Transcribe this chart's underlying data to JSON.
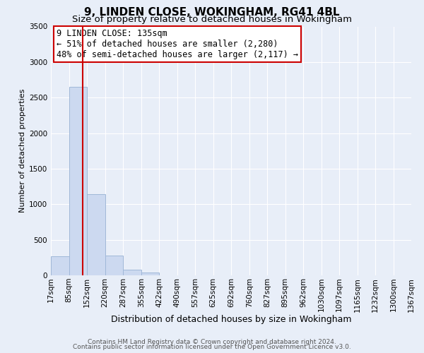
{
  "title": "9, LINDEN CLOSE, WOKINGHAM, RG41 4BL",
  "subtitle": "Size of property relative to detached houses in Wokingham",
  "xlabel": "Distribution of detached houses by size in Wokingham",
  "ylabel": "Number of detached properties",
  "bin_edges": [
    17,
    85,
    152,
    220,
    287,
    355,
    422,
    490,
    557,
    625,
    692,
    760,
    827,
    895,
    962,
    1030,
    1097,
    1165,
    1232,
    1300,
    1367
  ],
  "bar_heights": [
    270,
    2650,
    1140,
    280,
    80,
    35,
    0,
    0,
    0,
    0,
    0,
    0,
    0,
    0,
    0,
    0,
    0,
    0,
    0,
    0
  ],
  "bar_color": "#ccd9f0",
  "bar_edgecolor": "#a0b8d8",
  "property_line_x": 135,
  "property_line_color": "#cc0000",
  "annotation_line1": "9 LINDEN CLOSE: 135sqm",
  "annotation_line2": "← 51% of detached houses are smaller (2,280)",
  "annotation_line3": "48% of semi-detached houses are larger (2,117) →",
  "ylim": [
    0,
    3500
  ],
  "yticks": [
    0,
    500,
    1000,
    1500,
    2000,
    2500,
    3000,
    3500
  ],
  "bg_color": "#e8eef8",
  "plot_bg_color": "#e8eef8",
  "grid_color": "#ffffff",
  "footer1": "Contains HM Land Registry data © Crown copyright and database right 2024.",
  "footer2": "Contains public sector information licensed under the Open Government Licence v3.0.",
  "title_fontsize": 11,
  "subtitle_fontsize": 9.5,
  "xlabel_fontsize": 9,
  "ylabel_fontsize": 8,
  "tick_fontsize": 7.5,
  "annotation_fontsize": 8.5,
  "footer_fontsize": 6.5
}
